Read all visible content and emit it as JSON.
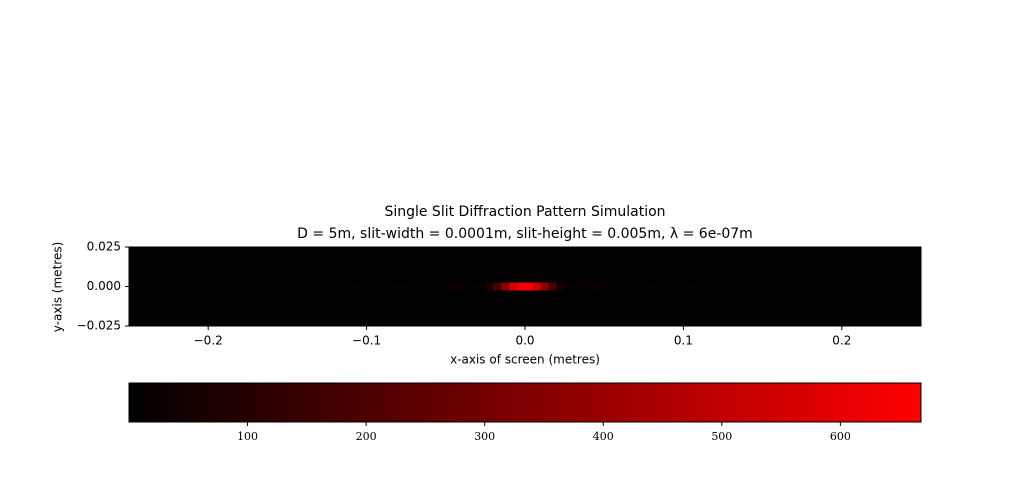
{
  "chart_data": {
    "type": "heatmap",
    "title": "Single Slit Diffraction Pattern Simulation",
    "subtitle": "D = 5m, slit-width = 0.0001m, slit-height = 0.005m, λ = 6e-07m",
    "xlabel": "x-axis of screen (metres)",
    "ylabel": "y-axis (metres)",
    "xlim": [
      -0.25,
      0.25
    ],
    "ylim": [
      -0.025,
      0.025
    ],
    "xticks": [
      {
        "value": -0.2,
        "label": "−0.2"
      },
      {
        "value": -0.1,
        "label": "−0.1"
      },
      {
        "value": 0,
        "label": "0.0"
      },
      0.1,
      0.2
    ],
    "yticks": [
      {
        "value": -0.025,
        "label": "−0.025"
      },
      {
        "value": 0,
        "label": "0.000"
      },
      0.025
    ],
    "background": "#000000",
    "colormap": [
      "#000000",
      "#ff0000"
    ],
    "clim": [
      0,
      668
    ],
    "cticks": [
      100,
      200,
      300,
      400,
      500,
      600
    ],
    "ybins": [
      -0.0025,
      0.0025
    ],
    "x": [
      -0.2475,
      -0.2425,
      -0.2375,
      -0.2325,
      -0.2275,
      -0.2225,
      -0.2175,
      -0.2125,
      -0.2075,
      -0.2025,
      -0.1975,
      -0.1925,
      -0.1875,
      -0.1825,
      -0.1775,
      -0.1725,
      -0.1675,
      -0.1625,
      -0.1575,
      -0.1525,
      -0.1475,
      -0.1425,
      -0.1375,
      -0.1325,
      -0.1275,
      -0.1225,
      -0.1175,
      -0.1125,
      -0.1075,
      -0.1025,
      -0.0975,
      -0.0925,
      -0.0875,
      -0.0825,
      -0.0775,
      -0.0725,
      -0.0675,
      -0.0625,
      -0.0575,
      -0.0525,
      -0.0475,
      -0.0425,
      -0.0375,
      -0.0325,
      -0.0275,
      -0.0225,
      -0.0175,
      -0.0125,
      -0.0075,
      -0.0025,
      0.0025,
      0.0075,
      0.0125,
      0.0175,
      0.0225,
      0.0275,
      0.0325,
      0.0375,
      0.0425,
      0.0475,
      0.0525,
      0.0575,
      0.0625,
      0.0675,
      0.0725,
      0.0775,
      0.0825,
      0.0875,
      0.0925,
      0.0975,
      0.1025,
      0.1075,
      0.1125,
      0.1175,
      0.1225,
      0.1275,
      0.1325,
      0.1375,
      0.1425,
      0.1475,
      0.1525,
      0.1575,
      0.1625,
      0.1675,
      0.1725,
      0.1775,
      0.1825,
      0.1875,
      0.1925,
      0.1975,
      0.2025,
      0.2075,
      0.2125,
      0.2175,
      0.2225,
      0.2275,
      0.2325,
      0.2375,
      0.2425,
      0.2475
    ],
    "values": [
      [
        1,
        0,
        0,
        1,
        1,
        1,
        1,
        0,
        0,
        1,
        2,
        2,
        1,
        0,
        0,
        1,
        2,
        2,
        1,
        0,
        0,
        1,
        3,
        3,
        2,
        0,
        0,
        2,
        5,
        5,
        3,
        0,
        1,
        4,
        9,
        11,
        7,
        1,
        1,
        11,
        25,
        31,
        22,
        4,
        5,
        60,
        185,
        362,
        539,
        653,
        653,
        539,
        362,
        185,
        60,
        5,
        4,
        22,
        31,
        25,
        11,
        1,
        1,
        7,
        11,
        9,
        4,
        1,
        0,
        3,
        5,
        5,
        2,
        0,
        0,
        2,
        3,
        3,
        1,
        0,
        0,
        1,
        2,
        2,
        1,
        0,
        0,
        1,
        2,
        2,
        1,
        0,
        0,
        1,
        1,
        1,
        1,
        0,
        0,
        1
      ]
    ]
  }
}
